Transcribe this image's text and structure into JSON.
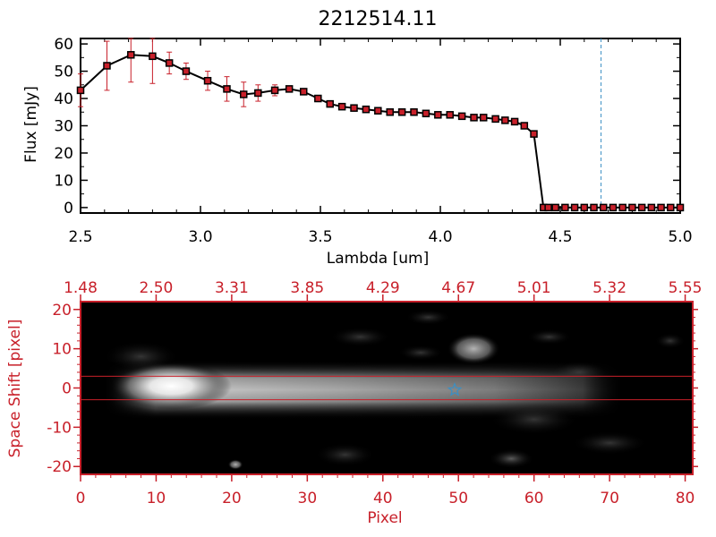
{
  "chart_data": [
    {
      "type": "line",
      "title": "2212514.11",
      "xlabel": "Lambda [um]",
      "ylabel": "Flux [mJy]",
      "xlim": [
        2.5,
        5.0
      ],
      "ylim": [
        -2,
        62
      ],
      "xticks": [
        2.5,
        3.0,
        3.5,
        4.0,
        4.5,
        5.0
      ],
      "xtick_labels": [
        "2.5",
        "3.0",
        "3.5",
        "4.0",
        "4.5",
        "5.0"
      ],
      "yticks": [
        0,
        10,
        20,
        30,
        40,
        50,
        60
      ],
      "ytick_labels": [
        "0",
        "10",
        "20",
        "30",
        "40",
        "50",
        "60"
      ],
      "vline_x": 4.67,
      "vline_color": "#3a8fc4",
      "line_color": "#000000",
      "marker_color": "#c8202a",
      "errorbar_color": "#c8202a",
      "series": [
        {
          "x": [
            2.5,
            2.61,
            2.71,
            2.8,
            2.87,
            2.94,
            3.03,
            3.11,
            3.18,
            3.24,
            3.31,
            3.37,
            3.43,
            3.49,
            3.54,
            3.59,
            3.64,
            3.69,
            3.74,
            3.79,
            3.84,
            3.89,
            3.94,
            3.99,
            4.04,
            4.09,
            4.14,
            4.18,
            4.23,
            4.27,
            4.31,
            4.35,
            4.39,
            4.43,
            4.45,
            4.48,
            4.52,
            4.56,
            4.6,
            4.64,
            4.68,
            4.72,
            4.76,
            4.8,
            4.84,
            4.88,
            4.92,
            4.96,
            5.0
          ],
          "y": [
            43,
            52,
            56,
            55.5,
            53,
            50,
            46.5,
            43.5,
            41.5,
            42,
            43,
            43.5,
            42.5,
            40,
            38,
            37,
            36.5,
            36,
            35.5,
            35,
            35,
            35,
            34.5,
            34,
            34,
            33.5,
            33,
            33,
            32.5,
            32,
            31.5,
            30,
            27,
            0,
            0,
            0,
            0,
            0,
            0,
            0,
            0,
            0,
            0,
            0,
            0,
            0,
            0,
            0,
            0
          ],
          "yerr": [
            6,
            9,
            10,
            10,
            4,
            3,
            3.5,
            4.5,
            4.5,
            3,
            2,
            1,
            0,
            0,
            0,
            0,
            0,
            0,
            0,
            0,
            0,
            0,
            0,
            0,
            0,
            0,
            0,
            0,
            0,
            0,
            0,
            0,
            0,
            0,
            0,
            0,
            0,
            0,
            0,
            0,
            0,
            0,
            0,
            0,
            0,
            0,
            0,
            0,
            0
          ]
        }
      ]
    },
    {
      "type": "heatmap",
      "xlabel": "Pixel",
      "ylabel": "Space Shift [pixel]",
      "xlim": [
        0,
        81
      ],
      "ylim": [
        -22,
        22
      ],
      "xticks": [
        0,
        10,
        20,
        30,
        40,
        50,
        60,
        70,
        80
      ],
      "xtick_labels": [
        "0",
        "10",
        "20",
        "30",
        "40",
        "50",
        "60",
        "70",
        "80"
      ],
      "yticks": [
        -20,
        -10,
        0,
        10,
        20
      ],
      "ytick_labels": [
        "-20",
        "-10",
        "0",
        "10",
        "20"
      ],
      "top_xticks": [
        0,
        10,
        20,
        30,
        40,
        50,
        60,
        70,
        80
      ],
      "top_xtick_labels": [
        "1.48",
        "2.50",
        "3.31",
        "3.85",
        "4.29",
        "4.67",
        "5.01",
        "5.32",
        "5.55"
      ],
      "hlines_y": [
        3,
        -3
      ],
      "hline_color": "#c8202a",
      "star_marker": {
        "x": 49.5,
        "y": -0.5,
        "color": "#3a8fc4"
      },
      "axis_color": "#c8202a",
      "colormap": "grayscale",
      "blobs": [
        {
          "x": 12,
          "y": 0.5,
          "peak": 255
        },
        {
          "x": 52,
          "y": 10,
          "peak": 150
        },
        {
          "x": 20.5,
          "y": -19.5,
          "peak": 200
        },
        {
          "x": 57,
          "y": -18,
          "peak": 70
        }
      ]
    }
  ]
}
